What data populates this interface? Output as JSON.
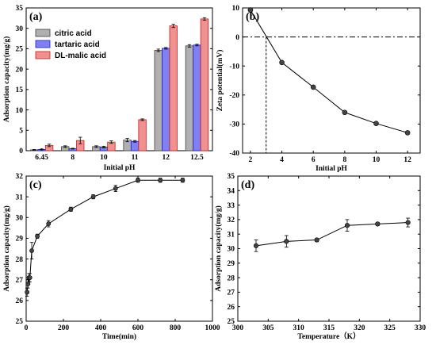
{
  "colors": {
    "citric": "#b0b0b0",
    "tartaric": "#8080f0",
    "malic": "#f09090",
    "citric_dark": "#404040",
    "tartaric_dark": "#2020c0",
    "malic_dark": "#c02020"
  },
  "chart_data": [
    {
      "panel": "(a)",
      "type": "bar",
      "xlabel": "Initial pH",
      "ylabel": "Adsorption capacity(mg/g)",
      "ylim": [
        0,
        35
      ],
      "yticks": [
        0,
        5,
        10,
        15,
        20,
        25,
        30,
        35
      ],
      "categories": [
        "6.45",
        "8",
        "10",
        "11",
        "12",
        "12.5"
      ],
      "legend_position": "top-left",
      "series": [
        {
          "name": "citric acid",
          "color_key": "citric",
          "values": [
            0.2,
            1.0,
            1.0,
            2.6,
            24.6,
            25.7
          ],
          "errors": [
            0.1,
            0.2,
            0.2,
            0.4,
            0.3,
            0.3
          ]
        },
        {
          "name": "tartaric acid",
          "color_key": "tartaric",
          "values": [
            0.3,
            0.5,
            0.9,
            2.3,
            25.1,
            25.9
          ],
          "errors": [
            0.1,
            0.1,
            0.2,
            0.2,
            0.2,
            0.2
          ]
        },
        {
          "name": "DL-malic acid",
          "color_key": "malic",
          "values": [
            1.3,
            2.5,
            2.1,
            7.6,
            30.6,
            32.3
          ],
          "errors": [
            0.3,
            0.8,
            0.3,
            0.2,
            0.4,
            0.3
          ]
        }
      ]
    },
    {
      "panel": "(b)",
      "type": "line",
      "xlabel": "Initial pH",
      "ylabel": "Zeta potential(mV)",
      "xlim": [
        1.5,
        12.8
      ],
      "ylim": [
        -40,
        10
      ],
      "xticks": [
        2,
        4,
        6,
        8,
        10,
        12
      ],
      "yticks": [
        -40,
        -30,
        -20,
        -10,
        0,
        10
      ],
      "x": [
        2,
        4,
        6,
        8,
        10,
        12
      ],
      "y": [
        9.3,
        -8.8,
        -17.3,
        -26.0,
        -29.8,
        -33.0
      ],
      "reference_lines": {
        "y": 0,
        "x": 3.0
      }
    },
    {
      "panel": "(c)",
      "type": "line",
      "xlabel": "Time(min)",
      "ylabel": "Adsorption capacity(mg/g)",
      "xlim": [
        0,
        1000
      ],
      "ylim": [
        25,
        32
      ],
      "xticks": [
        0,
        200,
        400,
        600,
        800,
        1000
      ],
      "yticks": [
        25,
        26,
        27,
        28,
        29,
        30,
        31,
        32
      ],
      "x": [
        5,
        10,
        15,
        20,
        30,
        60,
        120,
        240,
        360,
        480,
        600,
        720,
        840
      ],
      "y": [
        26.4,
        26.8,
        27.1,
        27.1,
        28.4,
        29.1,
        29.7,
        30.4,
        31.0,
        31.4,
        31.8,
        31.8,
        31.8
      ],
      "errors": [
        0.2,
        0.2,
        0.2,
        0.2,
        0.4,
        0.1,
        0.15,
        0.1,
        0.1,
        0.15,
        0.1,
        0.1,
        0.1
      ]
    },
    {
      "panel": "(d)",
      "type": "line",
      "xlabel": "Temperature（K）",
      "ylabel": "Adsorption capacity(mg/g)",
      "xlim": [
        300,
        330
      ],
      "ylim": [
        25,
        35
      ],
      "xticks": [
        300,
        305,
        310,
        315,
        320,
        325,
        330
      ],
      "yticks": [
        25,
        26,
        27,
        28,
        29,
        30,
        31,
        32,
        33,
        34,
        35
      ],
      "x": [
        303,
        308,
        313,
        318,
        323,
        328
      ],
      "y": [
        30.2,
        30.5,
        30.6,
        31.6,
        31.7,
        31.8
      ],
      "errors": [
        0.4,
        0.4,
        0.1,
        0.4,
        0.1,
        0.3
      ]
    }
  ]
}
